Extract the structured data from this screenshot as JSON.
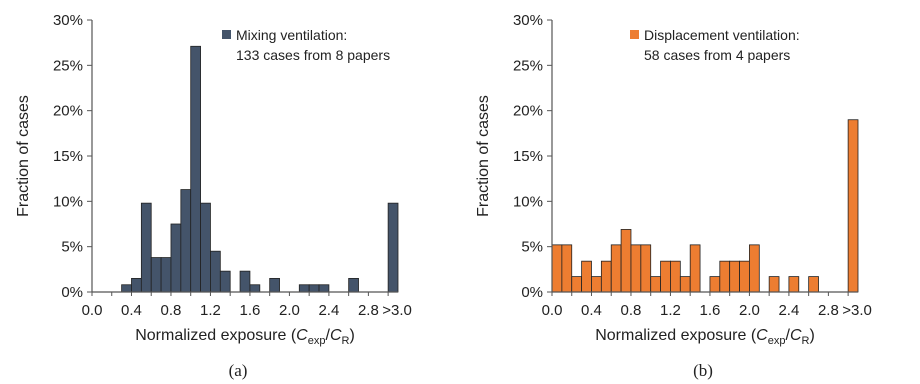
{
  "chart_data": [
    {
      "type": "bar",
      "panel_label": "(a)",
      "color": "#44546a",
      "xlabel": {
        "prefix": "Normalized exposure (",
        "c1": "C",
        "s1": "exp",
        "slash": "/",
        "c2": "C",
        "s2": "R",
        "suffix": ")"
      },
      "ylabel": "Fraction of cases",
      "ylim": [
        0,
        30
      ],
      "yticks": [
        0,
        5,
        10,
        15,
        20,
        25,
        30
      ],
      "ytick_labels": [
        "0%",
        "5%",
        "10%",
        "15%",
        "20%",
        "25%",
        "30%"
      ],
      "xtick_labels": [
        "0.0",
        "0.4",
        "0.8",
        "1.2",
        "1.6",
        "2.0",
        "2.4",
        "2.8",
        ">3.0"
      ],
      "bin_width": 0.1,
      "legend": [
        "Mixing ventilation:",
        "133 cases from 8 papers"
      ],
      "bins": [
        {
          "x": 0.3,
          "value": 0.8
        },
        {
          "x": 0.4,
          "value": 1.5
        },
        {
          "x": 0.5,
          "value": 9.8
        },
        {
          "x": 0.6,
          "value": 3.8
        },
        {
          "x": 0.7,
          "value": 3.8
        },
        {
          "x": 0.8,
          "value": 7.5
        },
        {
          "x": 0.9,
          "value": 11.3
        },
        {
          "x": 1.0,
          "value": 27.1
        },
        {
          "x": 1.1,
          "value": 9.8
        },
        {
          "x": 1.2,
          "value": 4.5
        },
        {
          "x": 1.3,
          "value": 2.3
        },
        {
          "x": 1.5,
          "value": 2.3
        },
        {
          "x": 1.6,
          "value": 0.8
        },
        {
          "x": 1.8,
          "value": 1.5
        },
        {
          "x": 2.1,
          "value": 0.8
        },
        {
          "x": 2.2,
          "value": 0.8
        },
        {
          "x": 2.3,
          "value": 0.8
        },
        {
          "x": 2.6,
          "value": 1.5
        },
        {
          "x": ">3.0",
          "value": 9.8
        }
      ]
    },
    {
      "type": "bar",
      "panel_label": "(b)",
      "color": "#ed7d31",
      "xlabel": {
        "prefix": "Normalized exposure (",
        "c1": "C",
        "s1": "exp",
        "slash": "/",
        "c2": "C",
        "s2": "R",
        "suffix": ")"
      },
      "ylabel": "Fraction of cases",
      "ylim": [
        0,
        30
      ],
      "yticks": [
        0,
        5,
        10,
        15,
        20,
        25,
        30
      ],
      "ytick_labels": [
        "0%",
        "5%",
        "10%",
        "15%",
        "20%",
        "25%",
        "30%"
      ],
      "xtick_labels": [
        "0.0",
        "0.4",
        "0.8",
        "1.2",
        "1.6",
        "2.0",
        "2.4",
        "2.8",
        ">3.0"
      ],
      "bin_width": 0.1,
      "legend": [
        "Displacement ventilation:",
        "58 cases from 4 papers"
      ],
      "bins": [
        {
          "x": 0.0,
          "value": 5.2
        },
        {
          "x": 0.1,
          "value": 5.2
        },
        {
          "x": 0.2,
          "value": 1.7
        },
        {
          "x": 0.3,
          "value": 3.4
        },
        {
          "x": 0.4,
          "value": 1.7
        },
        {
          "x": 0.5,
          "value": 3.4
        },
        {
          "x": 0.6,
          "value": 5.2
        },
        {
          "x": 0.7,
          "value": 6.9
        },
        {
          "x": 0.8,
          "value": 5.2
        },
        {
          "x": 0.9,
          "value": 5.2
        },
        {
          "x": 1.0,
          "value": 1.7
        },
        {
          "x": 1.1,
          "value": 3.4
        },
        {
          "x": 1.2,
          "value": 3.4
        },
        {
          "x": 1.3,
          "value": 1.7
        },
        {
          "x": 1.4,
          "value": 5.2
        },
        {
          "x": 1.6,
          "value": 1.7
        },
        {
          "x": 1.7,
          "value": 3.4
        },
        {
          "x": 1.8,
          "value": 3.4
        },
        {
          "x": 1.9,
          "value": 3.4
        },
        {
          "x": 2.0,
          "value": 5.2
        },
        {
          "x": 2.2,
          "value": 1.7
        },
        {
          "x": 2.4,
          "value": 1.7
        },
        {
          "x": 2.6,
          "value": 1.7
        },
        {
          "x": ">3.0",
          "value": 19.0
        }
      ]
    }
  ]
}
